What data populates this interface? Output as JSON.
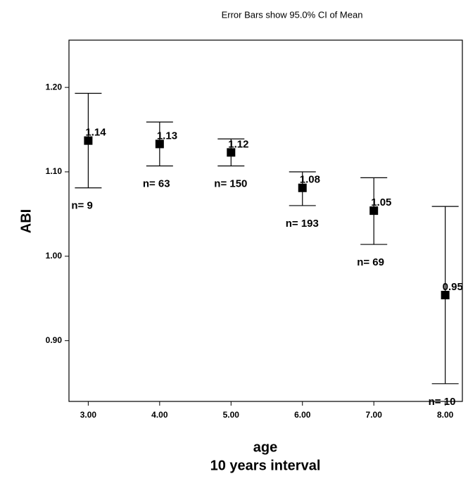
{
  "chart_data": {
    "type": "errorbar",
    "title": "Error Bars show 95.0% CI of Mean",
    "y_label": "ABI",
    "x_label": "age",
    "x_sublabel": "10 years interval",
    "x": [
      3,
      4,
      5,
      6,
      7,
      8
    ],
    "values": [
      1.137,
      1.133,
      1.123,
      1.081,
      1.054,
      0.954
    ],
    "value_labels": [
      "1.14",
      "1.13",
      "1.12",
      "1.08",
      "1.05",
      "0.95"
    ],
    "ci_lower": [
      1.081,
      1.107,
      1.107,
      1.06,
      1.014,
      0.849
    ],
    "ci_upper": [
      1.193,
      1.159,
      1.139,
      1.1,
      1.093,
      1.059
    ],
    "annotations": [
      "n= 9",
      "n= 63",
      "n= 150",
      "n= 193",
      "n= 69",
      "n= 10"
    ],
    "color": "#000000",
    "xlim": [
      2.73,
      8.24
    ],
    "ylim": [
      0.828,
      1.256
    ],
    "xticks": [
      {
        "value": 3,
        "label": "3.00"
      },
      {
        "value": 4,
        "label": "4.00"
      },
      {
        "value": 5,
        "label": "5.00"
      },
      {
        "value": 6,
        "label": "6.00"
      },
      {
        "value": 7,
        "label": "7.00"
      },
      {
        "value": 8,
        "label": "8.00"
      }
    ],
    "yticks": [
      {
        "value": 0.9,
        "label": "0.90"
      },
      {
        "value": 1.0,
        "label": "1.00"
      },
      {
        "value": 1.1,
        "label": "1.10"
      },
      {
        "value": 1.2,
        "label": "1.20"
      }
    ]
  }
}
